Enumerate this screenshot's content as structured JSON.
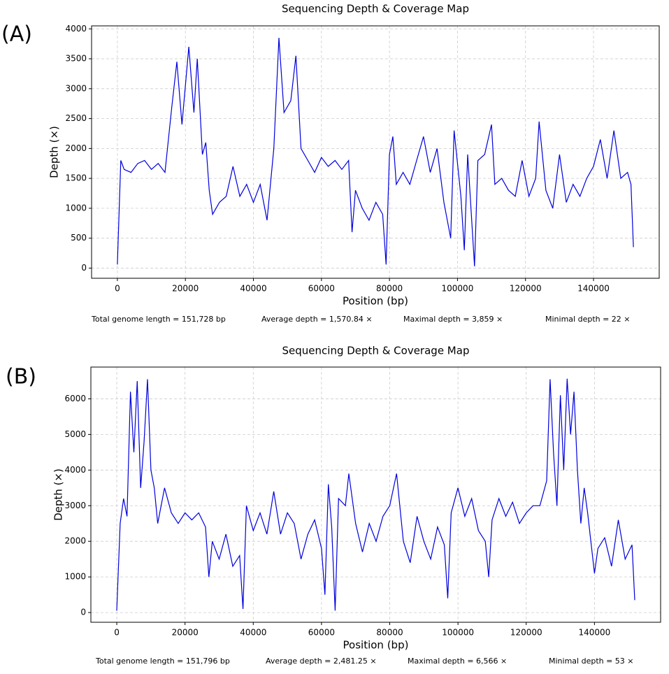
{
  "chart_data": [
    {
      "type": "line",
      "panel_label": "(A)",
      "title": "Sequencing Depth & Coverage Map",
      "xlabel": "Position (bp)",
      "ylabel": "Depth (×)",
      "annotations": [
        "Total genome length = 151,728 bp",
        "Average depth = 1,570.84 ×",
        "Maximal depth = 3,859 ×",
        "Minimal depth = 22 ×"
      ],
      "xlim": [
        -7586,
        159314
      ],
      "ylim": [
        -170,
        4050
      ],
      "xticks": [
        0,
        20000,
        40000,
        60000,
        80000,
        100000,
        120000,
        140000
      ],
      "yticks": [
        0,
        500,
        1000,
        1500,
        2000,
        2500,
        3000,
        3500,
        4000
      ],
      "grid": true,
      "series": [
        {
          "name": "Depth",
          "color": "#0000dd",
          "x": [
            0,
            1000,
            2000,
            4000,
            6000,
            8000,
            10000,
            12000,
            14000,
            16000,
            17500,
            19000,
            21000,
            22500,
            23500,
            25000,
            26000,
            27000,
            28000,
            30000,
            32000,
            34000,
            36000,
            38000,
            40000,
            42000,
            44000,
            46000,
            47500,
            49000,
            51000,
            52500,
            54000,
            56000,
            58000,
            60000,
            62000,
            64000,
            66000,
            68000,
            69000,
            70000,
            72000,
            74000,
            76000,
            78000,
            79000,
            80000,
            81000,
            82000,
            84000,
            86000,
            88000,
            90000,
            92000,
            94000,
            96000,
            98000,
            99000,
            101000,
            102000,
            103000,
            105000,
            106000,
            108000,
            110000,
            111000,
            113000,
            115000,
            117000,
            119000,
            121000,
            123000,
            124000,
            126000,
            128000,
            130000,
            132000,
            134000,
            136000,
            138000,
            140000,
            142000,
            144000,
            146000,
            148000,
            150000,
            151000,
            151728
          ],
          "values": [
            60,
            1800,
            1650,
            1600,
            1750,
            1800,
            1650,
            1750,
            1600,
            2700,
            3450,
            2400,
            3700,
            2600,
            3500,
            1900,
            2100,
            1300,
            900,
            1100,
            1200,
            1700,
            1200,
            1400,
            1100,
            1400,
            800,
            2000,
            3850,
            2600,
            2800,
            3550,
            2000,
            1800,
            1600,
            1850,
            1700,
            1800,
            1650,
            1800,
            600,
            1300,
            1000,
            800,
            1100,
            900,
            60,
            1900,
            2200,
            1400,
            1600,
            1400,
            1800,
            2200,
            1600,
            2000,
            1100,
            500,
            2300,
            1200,
            300,
            1900,
            30,
            1800,
            1900,
            2400,
            1400,
            1500,
            1300,
            1200,
            1800,
            1200,
            1500,
            2450,
            1300,
            1000,
            1900,
            1100,
            1400,
            1200,
            1500,
            1700,
            2150,
            1500,
            2300,
            1500,
            1600,
            1400,
            350
          ]
        }
      ]
    },
    {
      "type": "line",
      "panel_label": "(B)",
      "title": "Sequencing Depth & Coverage Map",
      "xlabel": "Position (bp)",
      "ylabel": "Depth (×)",
      "annotations": [
        "Total genome length = 151,796 bp",
        "Average depth = 2,481.25 ×",
        "Maximal depth = 6,566 ×",
        "Minimal depth = 53 ×"
      ],
      "xlim": [
        -7590,
        159386
      ],
      "ylim": [
        -273,
        6892
      ],
      "xticks": [
        0,
        20000,
        40000,
        60000,
        80000,
        100000,
        120000,
        140000
      ],
      "yticks": [
        0,
        1000,
        2000,
        3000,
        4000,
        5000,
        6000
      ],
      "grid": true,
      "series": [
        {
          "name": "Depth",
          "color": "#0000dd",
          "x": [
            0,
            1000,
            2000,
            3000,
            4000,
            5000,
            6000,
            7000,
            8000,
            9000,
            10000,
            11000,
            12000,
            14000,
            16000,
            18000,
            20000,
            22000,
            24000,
            26000,
            27000,
            28000,
            30000,
            32000,
            34000,
            36000,
            37000,
            38000,
            40000,
            42000,
            44000,
            46000,
            48000,
            50000,
            52000,
            54000,
            56000,
            58000,
            60000,
            61000,
            62000,
            63000,
            64000,
            65000,
            67000,
            68000,
            70000,
            72000,
            74000,
            76000,
            78000,
            80000,
            82000,
            84000,
            86000,
            88000,
            90000,
            92000,
            94000,
            96000,
            97000,
            98000,
            100000,
            102000,
            104000,
            106000,
            108000,
            109000,
            110000,
            112000,
            114000,
            116000,
            118000,
            120000,
            122000,
            124000,
            126000,
            127000,
            128000,
            129000,
            130000,
            131000,
            132000,
            133000,
            134000,
            135000,
            136000,
            137000,
            138000,
            140000,
            141000,
            143000,
            145000,
            147000,
            149000,
            151000,
            151796
          ],
          "values": [
            50,
            2500,
            3200,
            2700,
            6200,
            4500,
            6500,
            3500,
            4800,
            6550,
            4000,
            3500,
            2500,
            3500,
            2800,
            2500,
            2800,
            2600,
            2800,
            2400,
            1000,
            2000,
            1500,
            2200,
            1300,
            1600,
            100,
            3000,
            2300,
            2800,
            2200,
            3400,
            2200,
            2800,
            2500,
            1500,
            2200,
            2600,
            1800,
            500,
            3600,
            2400,
            53,
            3200,
            3000,
            3900,
            2500,
            1700,
            2500,
            2000,
            2700,
            3000,
            3900,
            2000,
            1400,
            2700,
            2000,
            1500,
            2400,
            1900,
            400,
            2800,
            3500,
            2700,
            3200,
            2300,
            2000,
            1000,
            2600,
            3200,
            2700,
            3100,
            2500,
            2800,
            3000,
            3000,
            3700,
            6550,
            4500,
            3000,
            6100,
            4000,
            6566,
            5000,
            6200,
            4000,
            2500,
            3500,
            2800,
            1100,
            1800,
            2100,
            1300,
            2600,
            1500,
            1900,
            350
          ]
        }
      ]
    }
  ]
}
